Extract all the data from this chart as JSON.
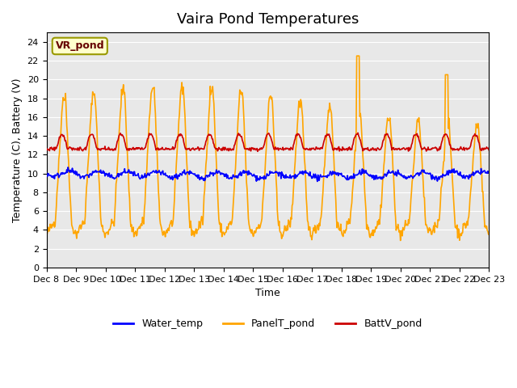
{
  "title": "Vaira Pond Temperatures",
  "xlabel": "Time",
  "ylabel": "Temperature (C), Battery (V)",
  "ylim": [
    0,
    25
  ],
  "yticks": [
    0,
    2,
    4,
    6,
    8,
    10,
    12,
    14,
    16,
    18,
    20,
    22,
    24
  ],
  "xtick_labels": [
    "Dec 8",
    "Dec 9",
    "Dec 10",
    "Dec 11",
    "Dec 12",
    "Dec 13",
    "Dec 14",
    "Dec 15",
    "Dec 16",
    "Dec 17",
    "Dec 18",
    "Dec 19",
    "Dec 20",
    "Dec 21",
    "Dec 22",
    "Dec 23"
  ],
  "water_color": "#0000ff",
  "panel_color": "#ffa500",
  "batt_color": "#cc0000",
  "bg_color": "#e8e8e8",
  "annotation_text": "VR_pond",
  "annotation_bg": "#ffffcc",
  "annotation_border": "#999900",
  "legend_labels": [
    "Water_temp",
    "PanelT_pond",
    "BattV_pond"
  ],
  "num_days": 15,
  "points_per_day": 48
}
